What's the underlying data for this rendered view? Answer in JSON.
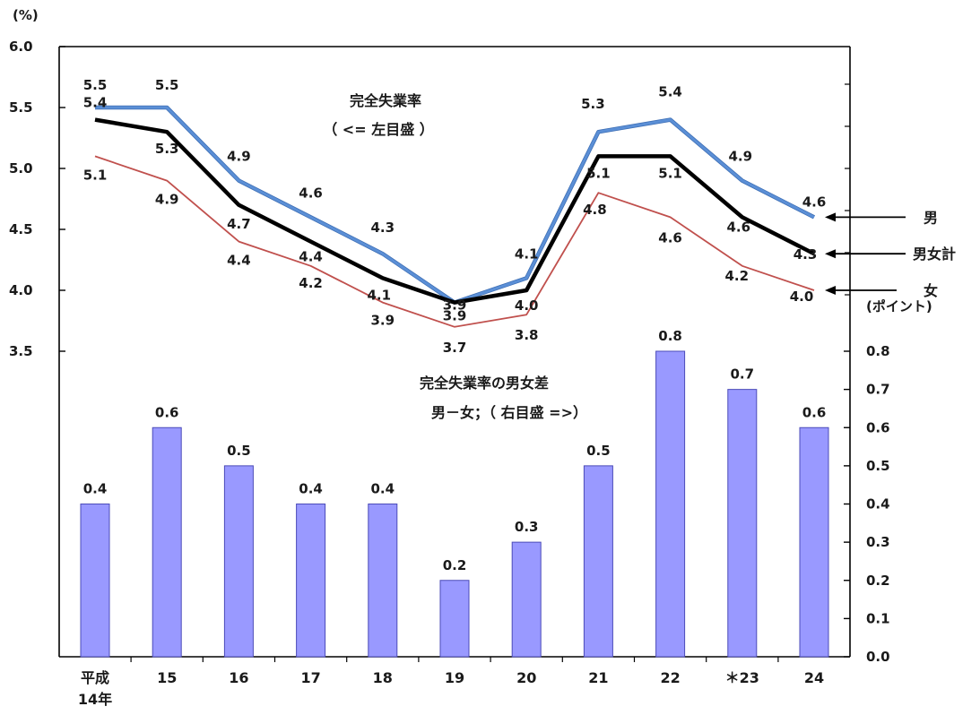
{
  "chart_data": {
    "type": "combo",
    "categories": [
      "平成\n14年",
      "15",
      "16",
      "17",
      "18",
      "19",
      "20",
      "21",
      "22",
      "＊23",
      "24"
    ],
    "left_axis": {
      "unit_label": "(%)",
      "ticks": [
        "6.0",
        "5.5",
        "5.0",
        "4.5",
        "4.0",
        "3.5"
      ],
      "ylim": [
        3.5,
        6.0
      ]
    },
    "right_axis": {
      "unit_label": "(ポイント)",
      "ticks": [
        "0.8",
        "0.7",
        "0.6",
        "0.5",
        "0.4",
        "0.3",
        "0.2",
        "0.1",
        "0.0"
      ],
      "ylim": [
        0.0,
        0.8
      ]
    },
    "line_series": [
      {
        "name": "男",
        "color": "#5b8fd6",
        "values": [
          5.5,
          5.5,
          4.9,
          4.6,
          4.3,
          3.9,
          4.1,
          5.3,
          5.4,
          4.9,
          4.6
        ],
        "labels": [
          "5.5",
          "5.5",
          "4.9",
          "4.6",
          "4.3",
          "3.9",
          "4.1",
          "5.3",
          "5.4",
          "4.9",
          "4.6"
        ]
      },
      {
        "name": "男女計",
        "color": "#000000",
        "values": [
          5.4,
          5.3,
          4.7,
          4.4,
          4.1,
          3.9,
          4.0,
          5.1,
          5.1,
          4.6,
          4.3
        ],
        "labels": [
          "5.4",
          "5.3",
          "4.7",
          "4.4",
          "4.1",
          "3.9",
          "4.0",
          "5.1",
          "5.1",
          "4.6",
          "4.3"
        ]
      },
      {
        "name": "女",
        "color": "#c0504d",
        "values": [
          5.1,
          4.9,
          4.4,
          4.2,
          3.9,
          3.7,
          3.8,
          4.8,
          4.6,
          4.2,
          4.0
        ],
        "labels": [
          "5.1",
          "4.9",
          "4.4",
          "4.2",
          "3.9",
          "3.7",
          "3.8",
          "4.8",
          "4.6",
          "4.2",
          "4.0"
        ]
      }
    ],
    "bar_series": {
      "name": "完全失業率の男女差",
      "color": "#9999ff",
      "values": [
        0.4,
        0.6,
        0.5,
        0.4,
        0.4,
        0.2,
        0.3,
        0.5,
        0.8,
        0.7,
        0.6
      ],
      "labels": [
        "0.4",
        "0.6",
        "0.5",
        "0.4",
        "0.4",
        "0.2",
        "0.3",
        "0.5",
        "0.8",
        "0.7",
        "0.6"
      ]
    },
    "annotations": {
      "line_title": "完全失業率",
      "line_axis_note": "（ <= 左目盛 ）",
      "bar_title": "完全失業率の男女差",
      "bar_axis_note": "男－女；（ 右目盛 =>）"
    },
    "legend_labels": [
      "男",
      "男女計",
      "女"
    ]
  }
}
